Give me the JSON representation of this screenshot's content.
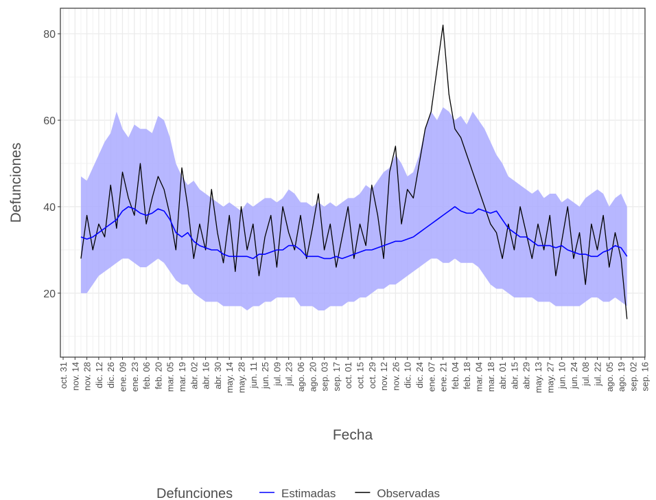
{
  "chart_data": {
    "type": "line",
    "x_label": "Fecha",
    "y_label": "Defunciones",
    "legend_title": "Defunciones",
    "categories": [
      "oct. 31",
      null,
      "nov. 14",
      null,
      "nov. 28",
      null,
      "dic. 12",
      null,
      "dic. 26",
      null,
      "ene. 09",
      null,
      "ene. 23",
      null,
      "feb. 06",
      null,
      "feb. 20",
      null,
      "mar. 05",
      null,
      "mar. 19",
      null,
      "abr. 02",
      null,
      "abr. 16",
      null,
      "abr. 30",
      null,
      "may. 14",
      null,
      "may. 28",
      null,
      "jun. 11",
      null,
      "jun. 25",
      null,
      "jul. 09",
      null,
      "jul. 23",
      null,
      "ago. 06",
      null,
      "ago. 20",
      null,
      "sep. 03",
      null,
      "sep. 17",
      null,
      "oct. 01",
      null,
      "oct. 15",
      null,
      "oct. 29",
      null,
      "nov. 12",
      null,
      "nov. 26",
      null,
      "dic. 10",
      null,
      "dic. 24",
      null,
      "ene. 07",
      null,
      "ene. 21",
      null,
      "feb. 04",
      null,
      "feb. 18",
      null,
      "mar. 04",
      null,
      "mar. 18",
      null,
      "abr. 01",
      null,
      "abr. 15",
      null,
      "abr. 29",
      null,
      "may. 13",
      null,
      "may. 27",
      null,
      "jun. 10",
      null,
      "jun. 24",
      null,
      "jul. 08",
      null,
      "jul. 22",
      null,
      "ago. 05",
      null,
      "ago. 19",
      null,
      "sep. 02",
      null,
      "sep. 16"
    ],
    "series": [
      {
        "name": "Estimadas",
        "color": "#0000ff",
        "values": [
          null,
          null,
          null,
          33,
          32.5,
          33,
          34,
          35,
          36,
          37,
          39,
          40,
          39.5,
          38.5,
          38,
          38.5,
          39.5,
          39,
          37,
          34,
          33,
          34,
          32,
          31,
          30.5,
          30,
          30,
          29,
          28.5,
          28.5,
          28.5,
          28.5,
          28,
          29,
          29,
          29.5,
          30,
          30,
          31,
          31,
          30,
          28.5,
          28.5,
          28.5,
          28,
          28,
          28.5,
          28,
          28.5,
          29,
          29.5,
          30,
          30,
          30.5,
          31,
          31.5,
          32,
          32,
          32.5,
          33,
          34,
          35,
          36,
          37,
          38,
          39,
          40,
          39,
          38.5,
          38.5,
          39.5,
          39,
          38.5,
          39,
          37,
          35,
          34,
          33,
          33,
          32,
          31,
          31,
          31,
          30.5,
          31,
          30,
          29.5,
          29,
          29,
          28.5,
          28.5,
          29.5,
          30,
          31,
          30.5,
          28.5,
          null,
          null,
          null
        ]
      },
      {
        "name": "Observadas",
        "color": "#000000",
        "values": [
          null,
          null,
          null,
          28,
          38,
          30,
          36,
          33,
          45,
          35,
          48,
          42,
          38,
          50,
          36,
          42,
          47,
          44,
          38,
          30,
          49,
          40,
          28,
          36,
          30,
          44,
          34,
          27,
          38,
          25,
          40,
          30,
          36,
          24,
          33,
          38,
          26,
          40,
          34,
          30,
          38,
          28,
          35,
          43,
          30,
          36,
          26,
          33,
          40,
          28,
          36,
          31,
          45,
          38,
          28,
          48,
          54,
          36,
          44,
          42,
          50,
          58,
          62,
          72,
          82,
          66,
          58,
          56,
          52,
          48,
          44,
          40,
          36,
          34,
          28,
          36,
          30,
          40,
          34,
          28,
          36,
          30,
          38,
          24,
          32,
          40,
          28,
          34,
          22,
          36,
          30,
          38,
          26,
          34,
          28,
          14,
          null,
          null,
          null
        ]
      }
    ],
    "band": {
      "color": "#aaaaff",
      "upper": [
        null,
        null,
        null,
        47,
        46,
        49,
        52,
        55,
        57,
        62,
        58,
        56,
        59,
        58,
        58,
        57,
        61,
        60,
        56,
        50,
        47,
        45,
        46,
        44,
        43,
        42,
        41,
        40,
        41,
        40,
        39,
        41,
        40,
        41,
        42,
        42,
        41,
        42,
        44,
        43,
        41,
        41,
        40,
        41,
        40,
        41,
        40,
        41,
        42,
        42,
        43,
        45,
        44,
        46,
        48,
        49,
        52,
        50,
        47,
        48,
        52,
        58,
        62,
        60,
        63,
        62,
        60,
        61,
        59,
        62,
        60,
        58,
        55,
        52,
        50,
        47,
        46,
        45,
        44,
        43,
        44,
        42,
        43,
        43,
        41,
        42,
        41,
        40,
        42,
        43,
        44,
        43,
        40,
        42,
        43,
        40,
        null,
        null,
        null
      ],
      "lower": [
        null,
        null,
        null,
        20,
        20,
        22,
        24,
        25,
        26,
        27,
        28,
        28,
        27,
        26,
        26,
        27,
        28,
        27,
        25,
        23,
        22,
        22,
        20,
        19,
        18,
        18,
        18,
        17,
        17,
        17,
        17,
        16,
        17,
        17,
        18,
        18,
        19,
        19,
        19,
        19,
        17,
        17,
        17,
        16,
        16,
        17,
        17,
        17,
        18,
        18,
        19,
        19,
        20,
        21,
        21,
        22,
        22,
        23,
        24,
        25,
        26,
        27,
        28,
        28,
        27,
        27,
        28,
        27,
        27,
        27,
        26,
        24,
        22,
        21,
        21,
        20,
        19,
        19,
        19,
        19,
        18,
        18,
        18,
        17,
        17,
        17,
        17,
        17,
        18,
        19,
        19,
        18,
        18,
        19,
        18,
        17,
        null,
        null,
        null
      ]
    },
    "ylim": [
      5.2,
      85.9
    ],
    "yticks": [
      20,
      40,
      60,
      80
    ],
    "grid": true
  }
}
